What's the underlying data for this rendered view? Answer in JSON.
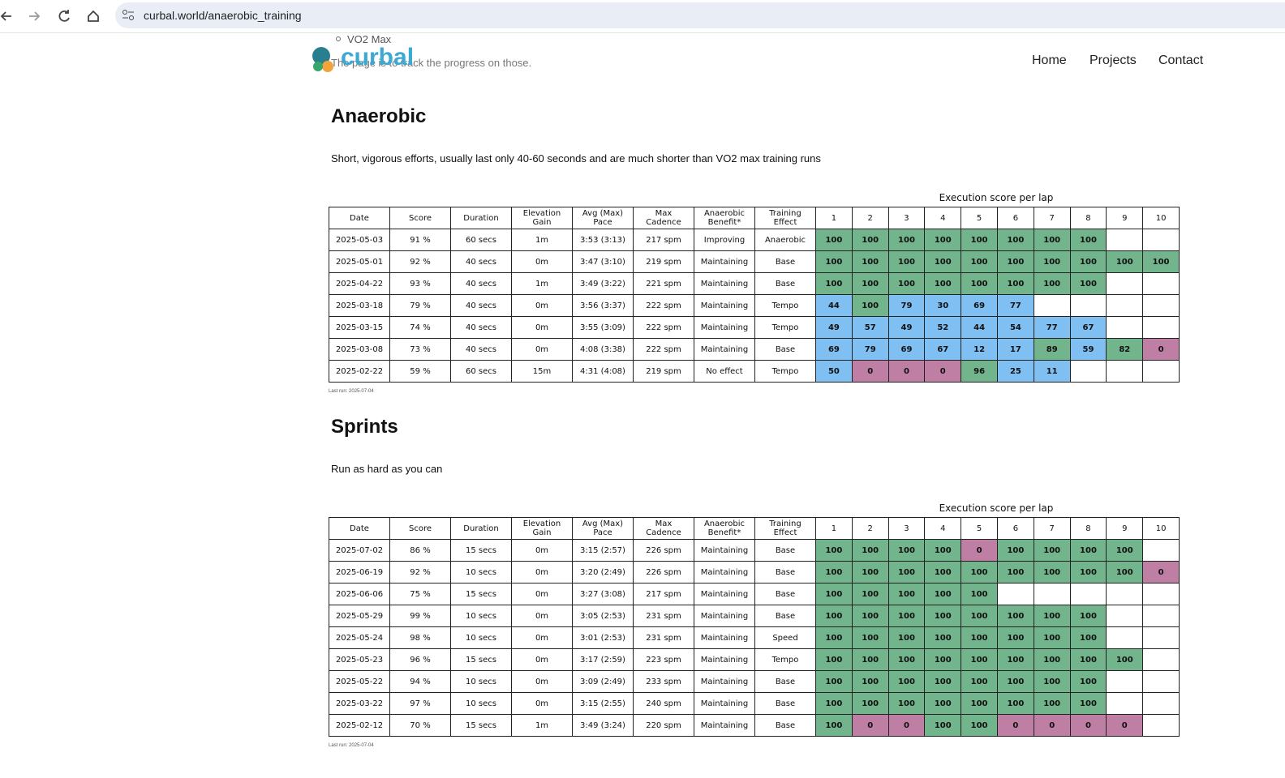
{
  "browser": {
    "url": "curbal.world/anaerobic_training"
  },
  "page_top": {
    "bullet": "VO2 Max",
    "intro": "The page is to track the progress on those."
  },
  "header": {
    "logo": "curbal",
    "nav": [
      "Home",
      "Projects",
      "Contact"
    ]
  },
  "colors": {
    "green": "#72b48b",
    "blue": "#7fbff2",
    "pink": "#bf7ea3"
  },
  "sections": [
    {
      "title": "Anaerobic",
      "description": "Short, vigorous efforts, usually last only 40-60 seconds and are much shorter than VO2 max training runs",
      "table": {
        "caption": "Execution score per lap",
        "headers": [
          "Date",
          "Score",
          "Duration",
          "Elevation Gain",
          "Avg (Max) Pace",
          "Max Cadence",
          "Anaerobic Benefit*",
          "Training Effect"
        ],
        "lap_headers": [
          1,
          2,
          3,
          4,
          5,
          6,
          7,
          8,
          9,
          10
        ],
        "rows": [
          {
            "cells": [
              "2025-05-03",
              "91 %",
              "60 secs",
              "1m",
              "3:53 (3:13)",
              "217 spm",
              "Improving",
              "Anaerobic"
            ],
            "laps": [
              100,
              100,
              100,
              100,
              100,
              100,
              100,
              100,
              null,
              null
            ],
            "lap_colors": [
              "green",
              "green",
              "green",
              "green",
              "green",
              "green",
              "green",
              "green",
              null,
              null
            ]
          },
          {
            "cells": [
              "2025-05-01",
              "92 %",
              "40 secs",
              "0m",
              "3:47 (3:10)",
              "219 spm",
              "Maintaining",
              "Base"
            ],
            "laps": [
              100,
              100,
              100,
              100,
              100,
              100,
              100,
              100,
              100,
              100
            ],
            "lap_colors": [
              "green",
              "green",
              "green",
              "green",
              "green",
              "green",
              "green",
              "green",
              "green",
              "green"
            ]
          },
          {
            "cells": [
              "2025-04-22",
              "93 %",
              "40 secs",
              "1m",
              "3:49 (3:22)",
              "221 spm",
              "Maintaining",
              "Base"
            ],
            "laps": [
              100,
              100,
              100,
              100,
              100,
              100,
              100,
              100,
              null,
              null
            ],
            "lap_colors": [
              "green",
              "green",
              "green",
              "green",
              "green",
              "green",
              "green",
              "green",
              null,
              null
            ]
          },
          {
            "cells": [
              "2025-03-18",
              "79 %",
              "40 secs",
              "0m",
              "3:56 (3:37)",
              "222 spm",
              "Maintaining",
              "Tempo"
            ],
            "laps": [
              44,
              100,
              79,
              30,
              69,
              77,
              null,
              null,
              null,
              null
            ],
            "lap_colors": [
              "blue",
              "green",
              "blue",
              "blue",
              "blue",
              "blue",
              null,
              null,
              null,
              null
            ]
          },
          {
            "cells": [
              "2025-03-15",
              "74 %",
              "40 secs",
              "0m",
              "3:55 (3:09)",
              "222 spm",
              "Maintaining",
              "Tempo"
            ],
            "laps": [
              49,
              57,
              49,
              52,
              44,
              54,
              77,
              67,
              null,
              null
            ],
            "lap_colors": [
              "blue",
              "blue",
              "blue",
              "blue",
              "blue",
              "blue",
              "blue",
              "blue",
              null,
              null
            ]
          },
          {
            "cells": [
              "2025-03-08",
              "73 %",
              "40 secs",
              "0m",
              "4:08 (3:38)",
              "222 spm",
              "Maintaining",
              "Base"
            ],
            "laps": [
              69,
              79,
              69,
              67,
              12,
              17,
              89,
              59,
              82,
              0
            ],
            "lap_colors": [
              "blue",
              "blue",
              "blue",
              "blue",
              "blue",
              "blue",
              "green",
              "blue",
              "green",
              "pink"
            ]
          },
          {
            "cells": [
              "2025-02-22",
              "59 %",
              "60 secs",
              "15m",
              "4:31 (4:08)",
              "219 spm",
              "No effect",
              "Tempo"
            ],
            "laps": [
              50,
              0,
              0,
              0,
              96,
              25,
              11,
              null,
              null,
              null
            ],
            "lap_colors": [
              "blue",
              "pink",
              "pink",
              "pink",
              "green",
              "blue",
              "blue",
              null,
              null,
              null
            ]
          }
        ],
        "footnote": "Last run: 2025-07-04"
      }
    },
    {
      "title": "Sprints",
      "description": "Run as hard as you can",
      "table": {
        "caption": "Execution score per lap",
        "headers": [
          "Date",
          "Score",
          "Duration",
          "Elevation Gain",
          "Avg (Max) Pace",
          "Max Cadence",
          "Anaerobic Benefit*",
          "Training Effect"
        ],
        "lap_headers": [
          1,
          2,
          3,
          4,
          5,
          6,
          7,
          8,
          9,
          10
        ],
        "rows": [
          {
            "cells": [
              "2025-07-02",
              "86 %",
              "15 secs",
              "0m",
              "3:15 (2:57)",
              "226 spm",
              "Maintaining",
              "Base"
            ],
            "laps": [
              100,
              100,
              100,
              100,
              0,
              100,
              100,
              100,
              100,
              null
            ],
            "lap_colors": [
              "green",
              "green",
              "green",
              "green",
              "pink",
              "green",
              "green",
              "green",
              "green",
              null
            ]
          },
          {
            "cells": [
              "2025-06-19",
              "92 %",
              "10 secs",
              "0m",
              "3:20 (2:49)",
              "226 spm",
              "Maintaining",
              "Base"
            ],
            "laps": [
              100,
              100,
              100,
              100,
              100,
              100,
              100,
              100,
              100,
              0
            ],
            "lap_colors": [
              "green",
              "green",
              "green",
              "green",
              "green",
              "green",
              "green",
              "green",
              "green",
              "pink"
            ]
          },
          {
            "cells": [
              "2025-06-06",
              "75 %",
              "15 secs",
              "0m",
              "3:27 (3:08)",
              "217 spm",
              "Maintaining",
              "Base"
            ],
            "laps": [
              100,
              100,
              100,
              100,
              100,
              null,
              null,
              null,
              null,
              null
            ],
            "lap_colors": [
              "green",
              "green",
              "green",
              "green",
              "green",
              null,
              null,
              null,
              null,
              null
            ]
          },
          {
            "cells": [
              "2025-05-29",
              "99 %",
              "10 secs",
              "0m",
              "3:05 (2:53)",
              "231 spm",
              "Maintaining",
              "Base"
            ],
            "laps": [
              100,
              100,
              100,
              100,
              100,
              100,
              100,
              100,
              null,
              null
            ],
            "lap_colors": [
              "green",
              "green",
              "green",
              "green",
              "green",
              "green",
              "green",
              "green",
              null,
              null
            ]
          },
          {
            "cells": [
              "2025-05-24",
              "98 %",
              "10 secs",
              "0m",
              "3:01 (2:53)",
              "231 spm",
              "Maintaining",
              "Speed"
            ],
            "laps": [
              100,
              100,
              100,
              100,
              100,
              100,
              100,
              100,
              null,
              null
            ],
            "lap_colors": [
              "green",
              "green",
              "green",
              "green",
              "green",
              "green",
              "green",
              "green",
              null,
              null
            ]
          },
          {
            "cells": [
              "2025-05-23",
              "96 %",
              "15 secs",
              "0m",
              "3:17 (2:59)",
              "223 spm",
              "Maintaining",
              "Tempo"
            ],
            "laps": [
              100,
              100,
              100,
              100,
              100,
              100,
              100,
              100,
              100,
              null
            ],
            "lap_colors": [
              "green",
              "green",
              "green",
              "green",
              "green",
              "green",
              "green",
              "green",
              "green",
              null
            ]
          },
          {
            "cells": [
              "2025-05-22",
              "94 %",
              "10 secs",
              "0m",
              "3:09 (2:49)",
              "233 spm",
              "Maintaining",
              "Base"
            ],
            "laps": [
              100,
              100,
              100,
              100,
              100,
              100,
              100,
              100,
              null,
              null
            ],
            "lap_colors": [
              "green",
              "green",
              "green",
              "green",
              "green",
              "green",
              "green",
              "green",
              null,
              null
            ]
          },
          {
            "cells": [
              "2025-03-22",
              "97 %",
              "10 secs",
              "0m",
              "3:15 (2:55)",
              "240 spm",
              "Maintaining",
              "Base"
            ],
            "laps": [
              100,
              100,
              100,
              100,
              100,
              100,
              100,
              100,
              null,
              null
            ],
            "lap_colors": [
              "green",
              "green",
              "green",
              "green",
              "green",
              "green",
              "green",
              "green",
              null,
              null
            ]
          },
          {
            "cells": [
              "2025-02-12",
              "70 %",
              "15 secs",
              "1m",
              "3:49 (3:24)",
              "220 spm",
              "Maintaining",
              "Base"
            ],
            "laps": [
              100,
              0,
              0,
              100,
              100,
              0,
              0,
              0,
              0,
              null
            ],
            "lap_colors": [
              "green",
              "pink",
              "pink",
              "green",
              "green",
              "pink",
              "pink",
              "pink",
              "pink",
              null
            ]
          }
        ],
        "footnote": "Last run: 2025-07-04"
      }
    }
  ]
}
